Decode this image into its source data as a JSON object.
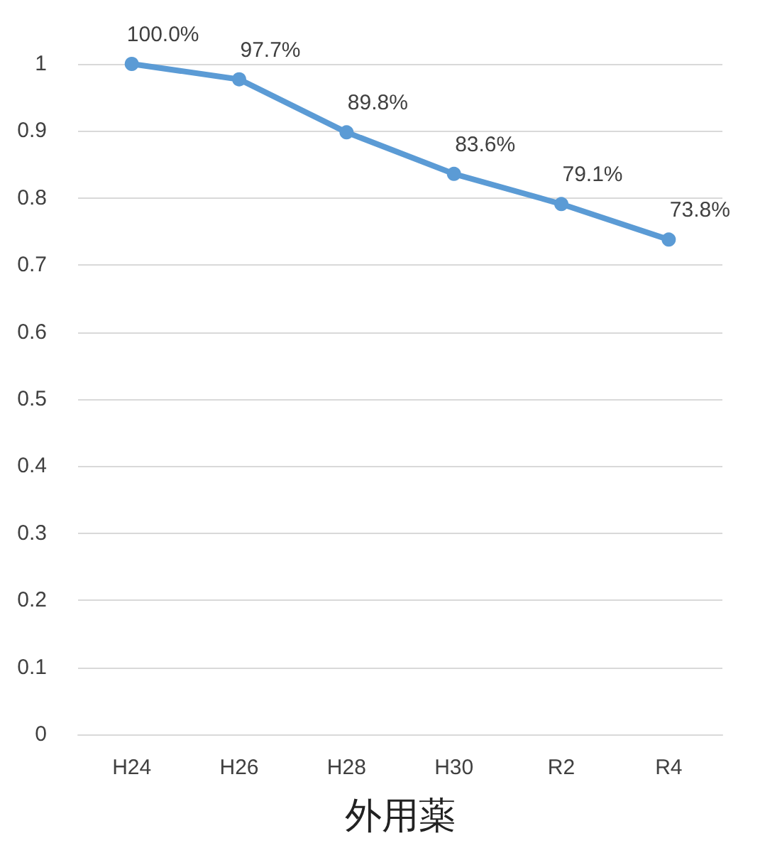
{
  "chart_data": {
    "type": "line",
    "xlabel": "外用薬",
    "categories": [
      "H24",
      "H26",
      "H28",
      "H30",
      "R2",
      "R4"
    ],
    "series": [
      {
        "color": "#5b9bd5",
        "values": [
          1.0,
          0.977,
          0.898,
          0.836,
          0.791,
          0.738
        ],
        "value_labels": [
          "100.0%",
          "97.7%",
          "89.8%",
          "83.6%",
          "79.1%",
          "73.8%"
        ]
      }
    ],
    "ylim": [
      0,
      1
    ],
    "yticks": [
      0,
      0.1,
      0.2,
      0.3,
      0.4,
      0.5,
      0.6,
      0.7,
      0.8,
      0.9,
      1
    ],
    "grid": "y",
    "marker": "circle",
    "line_style": "solid"
  }
}
